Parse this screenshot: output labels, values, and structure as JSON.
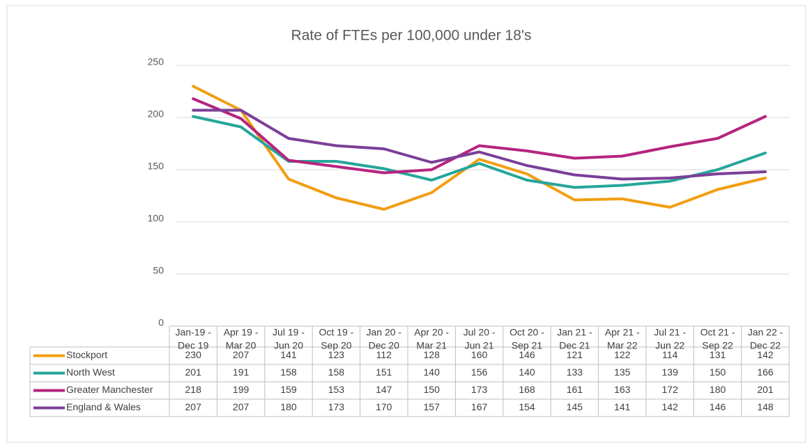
{
  "chart_data": {
    "type": "line",
    "title": "Rate of FTEs per 100,000 under 18's",
    "categories": [
      [
        "Jan-19 -",
        "Dec 19"
      ],
      [
        "Apr 19 -",
        "Mar 20"
      ],
      [
        "Jul 19 -",
        "Jun 20"
      ],
      [
        "Oct 19 -",
        "Sep 20"
      ],
      [
        "Jan 20 -",
        "Dec 20"
      ],
      [
        "Apr 20 -",
        "Mar 21"
      ],
      [
        "Jul 20 -",
        "Jun 21"
      ],
      [
        "Oct 20 -",
        "Sep 21"
      ],
      [
        "Jan 21 -",
        "Dec 21"
      ],
      [
        "Apr 21 -",
        "Mar 22"
      ],
      [
        "Jul 21 -",
        "Jun 22"
      ],
      [
        "Oct 21 -",
        "Sep 22"
      ],
      [
        "Jan 22 -",
        "Dec 22"
      ]
    ],
    "series": [
      {
        "name": "Stockport",
        "color": "#f29e12",
        "values": [
          230,
          207,
          141,
          123,
          112,
          128,
          160,
          146,
          121,
          122,
          114,
          131,
          142
        ]
      },
      {
        "name": "North West",
        "color": "#26a69a",
        "values": [
          201,
          191,
          158,
          158,
          151,
          140,
          156,
          140,
          133,
          135,
          139,
          150,
          166
        ]
      },
      {
        "name": "Greater Manchester",
        "color": "#b5247f",
        "values": [
          218,
          199,
          159,
          153,
          147,
          150,
          173,
          168,
          161,
          163,
          172,
          180,
          201
        ]
      },
      {
        "name": "England & Wales",
        "color": "#7b3f98",
        "values": [
          207,
          207,
          180,
          173,
          170,
          157,
          167,
          154,
          145,
          141,
          142,
          146,
          148
        ]
      }
    ],
    "ylim": [
      0,
      250
    ],
    "yticks": [
      0,
      50,
      100,
      150,
      200,
      250
    ],
    "grid": true
  }
}
